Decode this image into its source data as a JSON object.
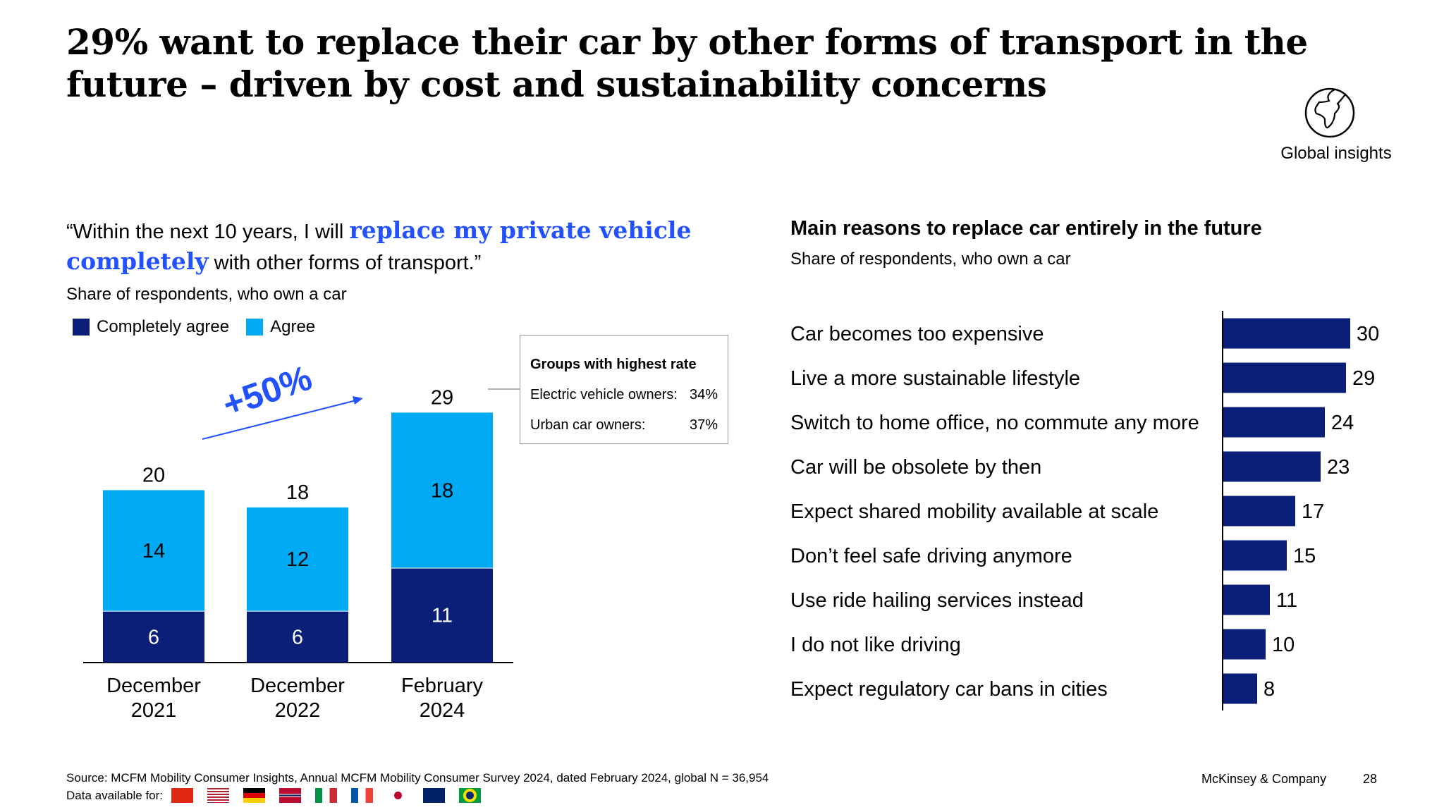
{
  "title": "29% want to replace their car by other forms of transport in the future – driven by cost and sustainability concerns",
  "badge": {
    "icon": "globe-africa-icon",
    "label": "Global insights"
  },
  "left": {
    "quote_pre": "“Within the next 10 years, I will ",
    "quote_highlight": "replace my private vehicle completely",
    "quote_post": " with other forms of transport.”",
    "subtitle": "Share of respondents, who own a car",
    "growth_label": "+50%",
    "callout": {
      "title": "Groups with highest rate",
      "rows": [
        {
          "label": "Electric vehicle owners:",
          "value": "34%"
        },
        {
          "label": "Urban car owners:",
          "value": "37%"
        }
      ]
    }
  },
  "right": {
    "title": "Main reasons to replace car entirely in the future",
    "subtitle": "Share of respondents, who own a car"
  },
  "colors": {
    "dark": "#0b1f78",
    "light": "#00a9f4",
    "accent": "#2251ff"
  },
  "chart_data": [
    {
      "type": "bar",
      "stacked": true,
      "categories": [
        [
          "December",
          "2021"
        ],
        [
          "December",
          "2022"
        ],
        [
          "February",
          "2024"
        ]
      ],
      "series": [
        {
          "name": "Completely agree",
          "values": [
            6,
            6,
            11
          ]
        },
        {
          "name": "Agree",
          "values": [
            14,
            12,
            18
          ]
        }
      ],
      "totals": [
        20,
        18,
        29
      ],
      "legend": "top-left"
    },
    {
      "type": "bar",
      "orientation": "horizontal",
      "categories": [
        "Car becomes too expensive",
        "Live a more sustainable lifestyle",
        "Switch to home office, no commute any more",
        "Car will be obsolete by then",
        "Expect shared mobility available at scale",
        "Don’t feel safe driving anymore",
        "Use ride hailing services instead",
        "I do not like driving",
        "Expect regulatory car bans in cities"
      ],
      "values": [
        30,
        29,
        24,
        23,
        17,
        15,
        11,
        10,
        8
      ]
    }
  ],
  "footer": {
    "source": "Source: MCFM Mobility Consumer Insights, Annual MCFM Mobility Consumer Survey 2024, dated February 2024, global N = 36,954",
    "data_available": "Data available for:",
    "flags": [
      "china",
      "usa",
      "germany",
      "norway",
      "italy",
      "france",
      "japan",
      "australia",
      "brazil"
    ],
    "company": "McKinsey & Company",
    "page": "28"
  }
}
